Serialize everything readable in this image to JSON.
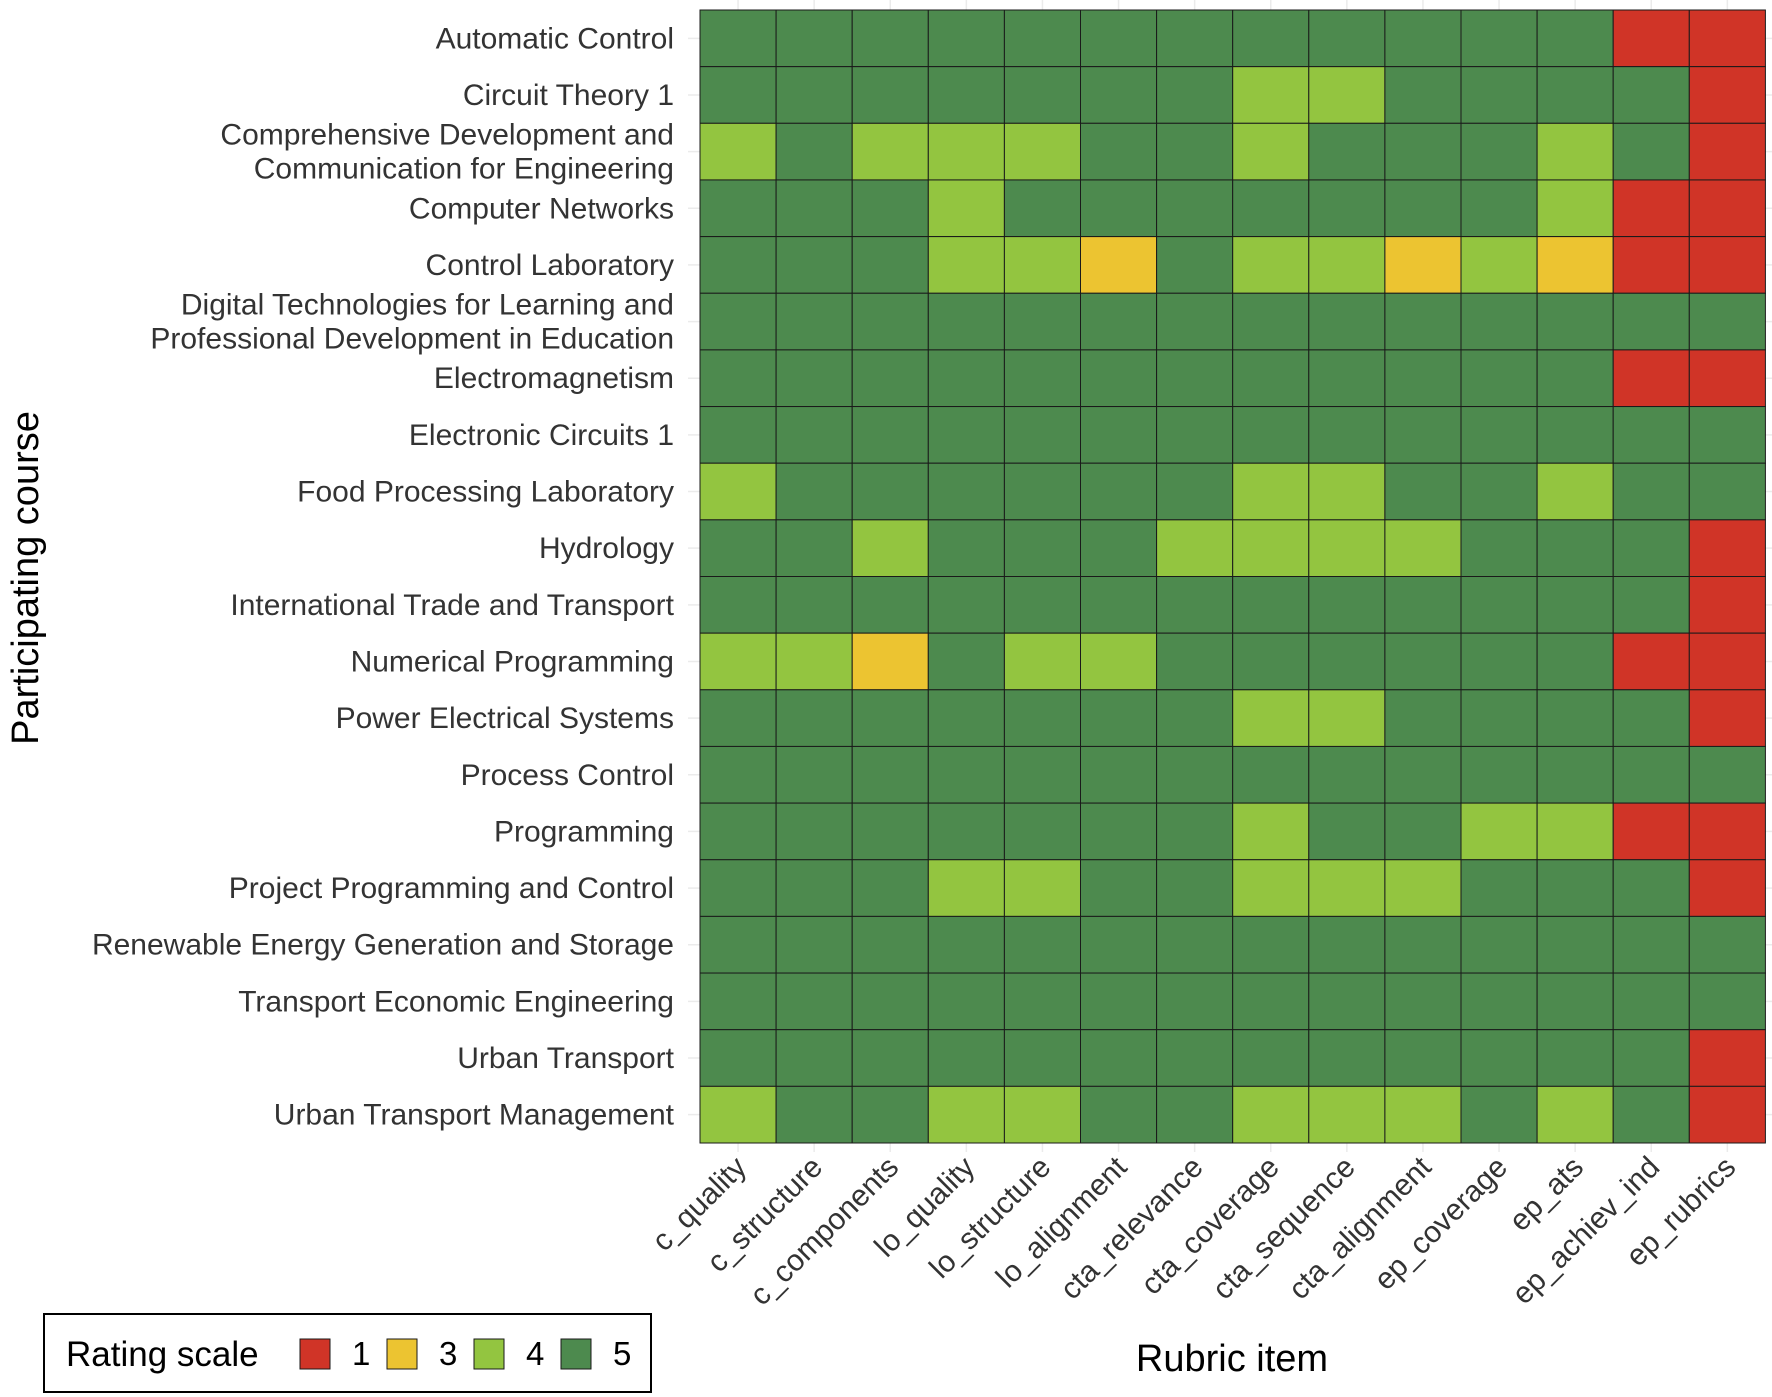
{
  "chart_data": {
    "type": "heatmap",
    "xlabel": "Rubric item",
    "ylabel": "Participating course",
    "x_categories": [
      "c_quality",
      "c_structure",
      "c_components",
      "lo_quality",
      "lo_structure",
      "lo_alignment",
      "cta_relevance",
      "cta_coverage",
      "cta_sequence",
      "cta_alignment",
      "ep_coverage",
      "ep_ats",
      "ep_achiev_ind",
      "ep_rubrics"
    ],
    "y_categories": [
      "Automatic Control",
      "Circuit Theory 1",
      "Comprehensive Development and\nCommunication for Engineering",
      "Computer Networks",
      "Control Laboratory",
      "Digital Technologies for Learning and\nProfessional Development in Education",
      "Electromagnetism",
      "Electronic Circuits 1",
      "Food Processing Laboratory",
      "Hydrology",
      "International Trade and Transport",
      "Numerical Programming",
      "Power Electrical Systems",
      "Process Control",
      "Programming",
      "Project Programming and Control",
      "Renewable Energy Generation and Storage",
      "Transport Economic Engineering",
      "Urban Transport",
      "Urban Transport Management"
    ],
    "values": [
      [
        5,
        5,
        5,
        5,
        5,
        5,
        5,
        5,
        5,
        5,
        5,
        5,
        1,
        1
      ],
      [
        5,
        5,
        5,
        5,
        5,
        5,
        5,
        4,
        4,
        5,
        5,
        5,
        5,
        1
      ],
      [
        4,
        5,
        4,
        4,
        4,
        5,
        5,
        4,
        5,
        5,
        5,
        4,
        5,
        1
      ],
      [
        5,
        5,
        5,
        4,
        5,
        5,
        5,
        5,
        5,
        5,
        5,
        4,
        1,
        1
      ],
      [
        5,
        5,
        5,
        4,
        4,
        3,
        5,
        4,
        4,
        3,
        4,
        3,
        1,
        1
      ],
      [
        5,
        5,
        5,
        5,
        5,
        5,
        5,
        5,
        5,
        5,
        5,
        5,
        5,
        5
      ],
      [
        5,
        5,
        5,
        5,
        5,
        5,
        5,
        5,
        5,
        5,
        5,
        5,
        1,
        1
      ],
      [
        5,
        5,
        5,
        5,
        5,
        5,
        5,
        5,
        5,
        5,
        5,
        5,
        5,
        5
      ],
      [
        4,
        5,
        5,
        5,
        5,
        5,
        5,
        4,
        4,
        5,
        5,
        4,
        5,
        5
      ],
      [
        5,
        5,
        4,
        5,
        5,
        5,
        4,
        4,
        4,
        4,
        5,
        5,
        5,
        1
      ],
      [
        5,
        5,
        5,
        5,
        5,
        5,
        5,
        5,
        5,
        5,
        5,
        5,
        5,
        1
      ],
      [
        4,
        4,
        3,
        5,
        4,
        4,
        5,
        5,
        5,
        5,
        5,
        5,
        1,
        1
      ],
      [
        5,
        5,
        5,
        5,
        5,
        5,
        5,
        4,
        4,
        5,
        5,
        5,
        5,
        1
      ],
      [
        5,
        5,
        5,
        5,
        5,
        5,
        5,
        5,
        5,
        5,
        5,
        5,
        5,
        5
      ],
      [
        5,
        5,
        5,
        5,
        5,
        5,
        5,
        4,
        5,
        5,
        4,
        4,
        1,
        1
      ],
      [
        5,
        5,
        5,
        4,
        4,
        5,
        5,
        4,
        4,
        4,
        5,
        5,
        5,
        1
      ],
      [
        5,
        5,
        5,
        5,
        5,
        5,
        5,
        5,
        5,
        5,
        5,
        5,
        5,
        5
      ],
      [
        5,
        5,
        5,
        5,
        5,
        5,
        5,
        5,
        5,
        5,
        5,
        5,
        5,
        5
      ],
      [
        5,
        5,
        5,
        5,
        5,
        5,
        5,
        5,
        5,
        5,
        5,
        5,
        5,
        1
      ],
      [
        4,
        5,
        5,
        4,
        4,
        5,
        5,
        4,
        4,
        4,
        5,
        4,
        5,
        1
      ]
    ],
    "legend": {
      "title": "Rating scale",
      "position": "bottom-left",
      "entries": [
        {
          "label": "1",
          "value": 1,
          "color": "#d03427"
        },
        {
          "label": "3",
          "value": 3,
          "color": "#ecc431"
        },
        {
          "label": "4",
          "value": 4,
          "color": "#93c540"
        },
        {
          "label": "5",
          "value": 5,
          "color": "#4d8a4e"
        }
      ]
    }
  }
}
